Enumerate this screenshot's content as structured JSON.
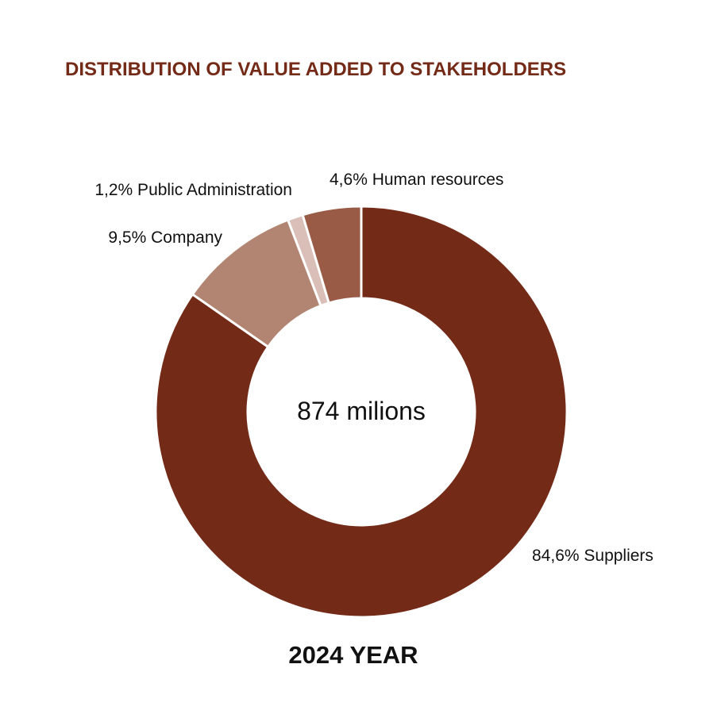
{
  "chart_data": {
    "type": "pie",
    "donut": true,
    "title": "DISTRIBUTION OF VALUE ADDED TO STAKEHOLDERS",
    "center_text": "874 milions",
    "footer": "2024 YEAR",
    "slices": [
      {
        "label": "84,6% Suppliers",
        "value": 84.6,
        "color": "#732a17"
      },
      {
        "label": "9,5% Company",
        "value": 9.5,
        "color": "#b18572"
      },
      {
        "label": "1,2% Public Administration",
        "value": 1.2,
        "color": "#d9bfb8"
      },
      {
        "label": "4,6% Human resources",
        "value": 4.6,
        "color": "#995b45"
      }
    ]
  }
}
